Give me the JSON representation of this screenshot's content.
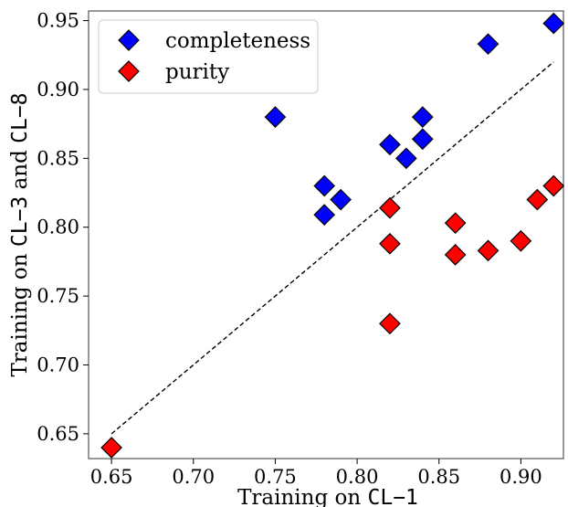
{
  "chart_data": {
    "type": "scatter",
    "title": "",
    "xlabel": {
      "prefix": "Training on ",
      "code": "CL−1"
    },
    "ylabel": {
      "prefix": "Training on ",
      "code1": "CL−3",
      "mid": " and  ",
      "code2": "CL−8"
    },
    "xlim": [
      0.636,
      0.926
    ],
    "ylim": [
      0.632,
      0.957
    ],
    "x_ticks": [
      "0.65",
      "0.70",
      "0.75",
      "0.80",
      "0.85",
      "0.90"
    ],
    "x_tick_values": [
      0.65,
      0.7,
      0.75,
      0.8,
      0.85,
      0.9
    ],
    "y_ticks": [
      "0.65",
      "0.70",
      "0.75",
      "0.80",
      "0.85",
      "0.90",
      "0.95"
    ],
    "y_tick_values": [
      0.65,
      0.7,
      0.75,
      0.8,
      0.85,
      0.9,
      0.95
    ],
    "grid": false,
    "legend_position": "top-left",
    "reference_line": {
      "style": "dashed",
      "color": "#000000",
      "from": [
        0.65,
        0.65
      ],
      "to": [
        0.92,
        0.92
      ]
    },
    "series": [
      {
        "name": "completeness",
        "color": "#0000ff",
        "marker": "diamond",
        "points": [
          {
            "x": 0.75,
            "y": 0.88
          },
          {
            "x": 0.78,
            "y": 0.83
          },
          {
            "x": 0.78,
            "y": 0.809
          },
          {
            "x": 0.79,
            "y": 0.82
          },
          {
            "x": 0.82,
            "y": 0.86
          },
          {
            "x": 0.83,
            "y": 0.85
          },
          {
            "x": 0.84,
            "y": 0.88
          },
          {
            "x": 0.84,
            "y": 0.864
          },
          {
            "x": 0.88,
            "y": 0.933
          },
          {
            "x": 0.92,
            "y": 0.948
          }
        ]
      },
      {
        "name": "purity",
        "color": "#ff0000",
        "marker": "diamond",
        "points": [
          {
            "x": 0.65,
            "y": 0.64
          },
          {
            "x": 0.82,
            "y": 0.814
          },
          {
            "x": 0.82,
            "y": 0.788
          },
          {
            "x": 0.82,
            "y": 0.73
          },
          {
            "x": 0.86,
            "y": 0.803
          },
          {
            "x": 0.86,
            "y": 0.78
          },
          {
            "x": 0.88,
            "y": 0.783
          },
          {
            "x": 0.9,
            "y": 0.79
          },
          {
            "x": 0.91,
            "y": 0.82
          },
          {
            "x": 0.92,
            "y": 0.83
          }
        ]
      }
    ]
  }
}
